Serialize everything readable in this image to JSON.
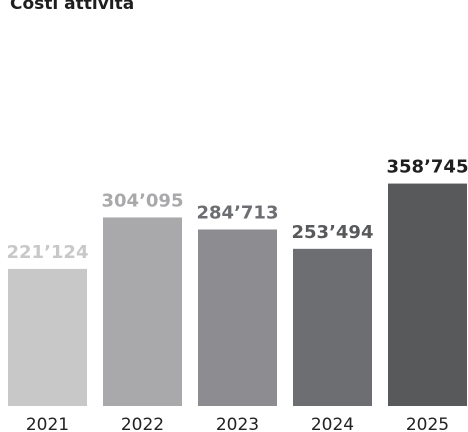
{
  "chart_data": {
    "type": "bar",
    "title": "Costi attività",
    "categories": [
      "2021",
      "2022",
      "2023",
      "2024",
      "2025"
    ],
    "values": [
      221124,
      304095,
      284713,
      253494,
      358745
    ],
    "value_labels": [
      "221’124",
      "304’095",
      "284’713",
      "253’494",
      "358’745"
    ],
    "xlabel": "",
    "ylabel": "",
    "grid": false,
    "legend": "none",
    "colors": {
      "bars": [
        "#c8c8c8",
        "#a9a9ac",
        "#8d8d91",
        "#6d6e71",
        "#58595b"
      ],
      "labels": [
        "#c8c8c8",
        "#a9a9ac",
        "#6d6e71",
        "#58595b",
        "#1f1f1f"
      ],
      "title": "#1f1f1f",
      "ticks": "#222222"
    }
  }
}
